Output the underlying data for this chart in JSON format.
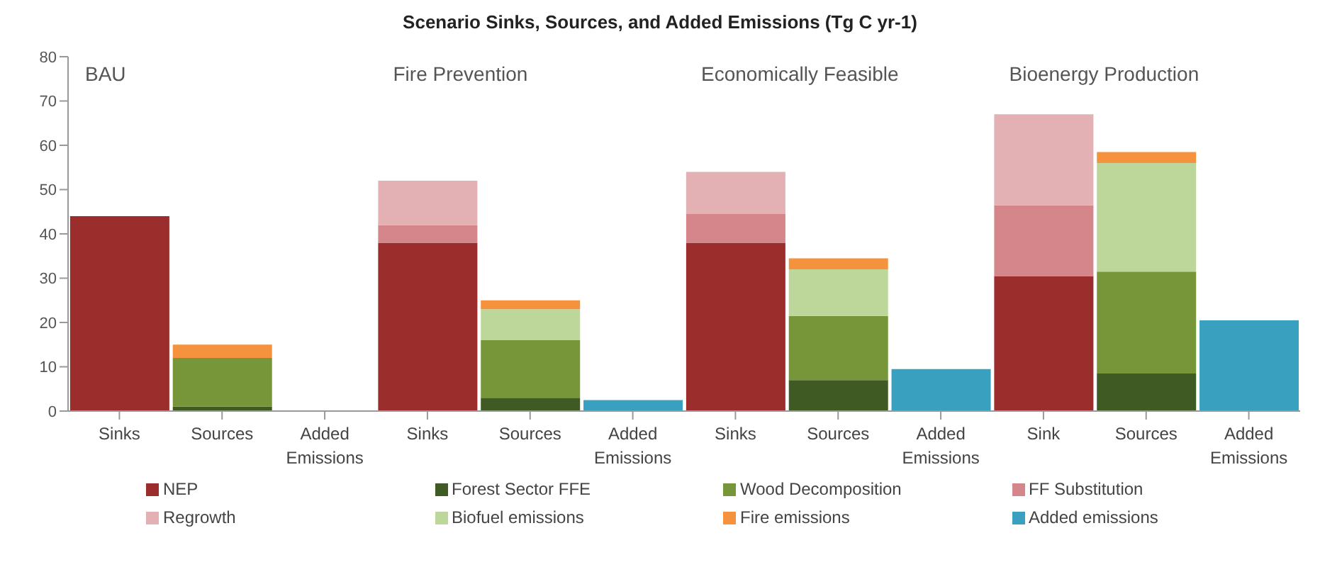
{
  "chart_data": {
    "type": "bar",
    "title": "Scenario Sinks, Sources, and Added Emissions (Tg C yr-1)",
    "stacked": true,
    "categories": [
      "Sinks",
      "Sources",
      "Added Emissions",
      "Sinks",
      "Sources",
      "Added Emissions",
      "Sinks",
      "Sources",
      "Added Emissions",
      "Sink",
      "Sources",
      "Added Emissions"
    ],
    "series": [
      {
        "name": "NEP",
        "color": "#9b2d2d",
        "values": [
          44,
          null,
          null,
          38,
          null,
          null,
          38,
          null,
          null,
          30.5,
          null,
          null
        ]
      },
      {
        "name": "Forest Sector FFE",
        "color": "#3f5a22",
        "values": [
          null,
          1,
          null,
          null,
          3,
          null,
          null,
          7,
          null,
          null,
          8.5,
          null
        ]
      },
      {
        "name": "Wood Decomposition",
        "color": "#77963a",
        "values": [
          null,
          11,
          null,
          null,
          13,
          null,
          null,
          14.5,
          null,
          null,
          23,
          null
        ]
      },
      {
        "name": "FF Substitution",
        "color": "#d4868a",
        "values": [
          null,
          null,
          null,
          4,
          null,
          null,
          6.5,
          null,
          null,
          16,
          null,
          null
        ]
      },
      {
        "name": "Regrowth",
        "color": "#e3b1b3",
        "values": [
          null,
          null,
          null,
          10,
          null,
          null,
          9.5,
          null,
          null,
          20.5,
          null,
          null
        ]
      },
      {
        "name": "Biofuel emissions",
        "color": "#bdd79a",
        "values": [
          null,
          null,
          null,
          null,
          7,
          null,
          null,
          10.5,
          null,
          null,
          24.5,
          null
        ]
      },
      {
        "name": "Fire emissions",
        "color": "#f5923e",
        "values": [
          null,
          3,
          null,
          null,
          2,
          null,
          null,
          2.5,
          null,
          null,
          2.5,
          null
        ]
      },
      {
        "name": "Added emissions",
        "color": "#3aa0c0",
        "values": [
          null,
          null,
          0,
          null,
          null,
          2.5,
          null,
          null,
          9.5,
          null,
          null,
          20.5
        ]
      }
    ],
    "annotations": [
      "BAU",
      "Fire Prevention",
      "Economically Feasible",
      "Bioenergy Production"
    ],
    "ylim": [
      0,
      80
    ],
    "yticks": [
      0,
      10,
      20,
      30,
      40,
      50,
      60,
      70,
      80
    ],
    "grid": false,
    "legend": "bottom"
  }
}
